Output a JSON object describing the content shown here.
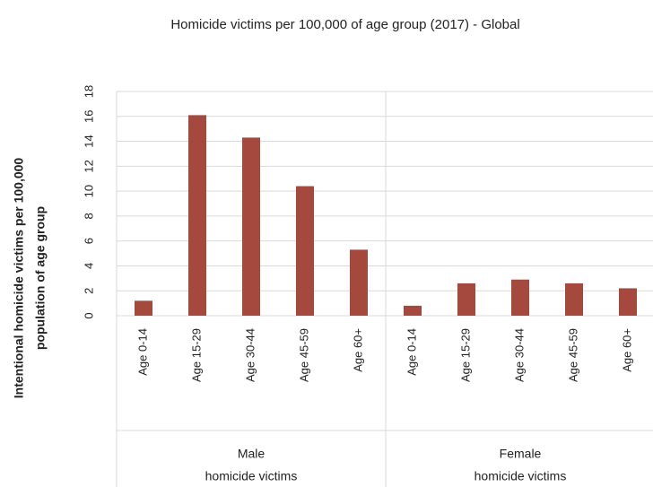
{
  "chart_data": {
    "type": "bar",
    "title": "Homicide victims per 100,000 of age group (2017) - Global",
    "ylabel": [
      "Intentional homicide victims per 100,000",
      "population of age group"
    ],
    "color": "#a5493e",
    "ylim": [
      0,
      18
    ],
    "yticks": [
      0,
      2,
      4,
      6,
      8,
      10,
      12,
      14,
      16,
      18
    ],
    "grid": true,
    "groups": [
      {
        "name": [
          "Male",
          "homicide victims"
        ],
        "categories": [
          "Age 0-14",
          "Age 15-29",
          "Age 30-44",
          "Age 45-59",
          "Age 60+"
        ],
        "values": [
          1.2,
          16.1,
          14.3,
          10.4,
          5.3
        ]
      },
      {
        "name": [
          "Female",
          "homicide victims"
        ],
        "categories": [
          "Age 0-14",
          "Age 15-29",
          "Age 30-44",
          "Age 45-59",
          "Age 60+"
        ],
        "values": [
          0.8,
          2.6,
          2.9,
          2.6,
          2.2
        ]
      }
    ]
  }
}
